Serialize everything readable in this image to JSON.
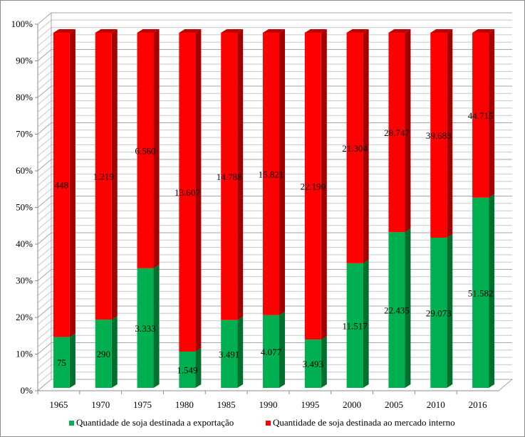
{
  "chart_data": {
    "type": "bar",
    "stacked": "percent",
    "style": "3d-column",
    "title": "",
    "xlabel": "",
    "ylabel": "",
    "categories": [
      "1965",
      "1970",
      "1975",
      "1980",
      "1985",
      "1990",
      "1995",
      "2000",
      "2005",
      "2010",
      "2016"
    ],
    "series": [
      {
        "name": "Quantidade de soja destinada a exportação",
        "color": "#00b050",
        "side_color": "#00702f",
        "values": [
          75,
          290,
          3333,
          1549,
          3491,
          4077,
          3493,
          11517,
          22435,
          29073,
          51582
        ],
        "labels": [
          "75",
          "290",
          "3.333",
          "1.549",
          "3.491",
          "4.077",
          "3.493",
          "11.517",
          "22.435",
          "29.073",
          "51.582"
        ]
      },
      {
        "name": "Quantidade de soja destinada ao mercado interno",
        "color": "#ff0000",
        "side_color": "#a50000",
        "values": [
          448,
          1219,
          6560,
          13607,
          14788,
          15821,
          22190,
          21304,
          28747,
          39683,
          44715
        ],
        "labels": [
          "448",
          "1.219",
          "6.560",
          "13.607",
          "14.788",
          "15.821",
          "22.190",
          "21.304",
          "28.747",
          "39.683",
          "44.715"
        ]
      }
    ],
    "ylim": [
      0,
      100
    ],
    "yticks": [
      "0%",
      "10%",
      "20%",
      "30%",
      "40%",
      "50%",
      "60%",
      "70%",
      "80%",
      "90%",
      "100%"
    ],
    "grid": true,
    "legend": "bottom"
  }
}
